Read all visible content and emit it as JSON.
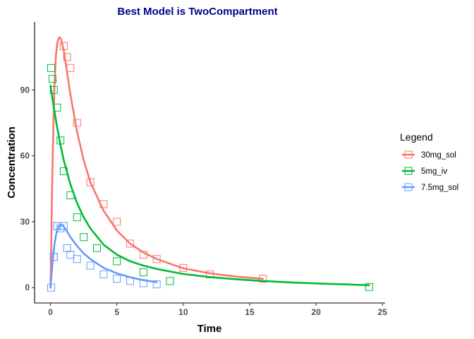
{
  "chart_data": {
    "type": "scatter",
    "title": "Best Model is TwoCompartment",
    "title_color": "#00008b",
    "xlabel": "Time",
    "ylabel": "Concentration",
    "xlim": [
      -1.2,
      25.2
    ],
    "ylim": [
      -7,
      121
    ],
    "x_ticks": [
      0,
      5,
      10,
      15,
      20,
      25
    ],
    "y_ticks": [
      0,
      30,
      60,
      90
    ],
    "grid": false,
    "legend": {
      "title": "Legend",
      "placement": "right"
    },
    "series": [
      {
        "name": "30mg_sol",
        "color": "#f8766d",
        "points": {
          "x": [
            0.25,
            0.5,
            1,
            1.25,
            1.5,
            2,
            3,
            4,
            5,
            6,
            7,
            8,
            10,
            12,
            16
          ],
          "y": [
            14,
            28,
            110,
            105,
            100,
            75,
            48,
            38,
            30,
            20,
            15,
            13,
            9,
            6,
            4
          ]
        },
        "fit": {
          "x": [
            0,
            0.05,
            0.1,
            0.2,
            0.3,
            0.4,
            0.5,
            0.6,
            0.7,
            0.8,
            1,
            1.25,
            1.5,
            2,
            2.5,
            3,
            4,
            5,
            6,
            7,
            8,
            10,
            12,
            14,
            16
          ],
          "y": [
            0,
            15,
            40,
            70,
            92,
            105,
            111,
            113.5,
            114,
            113,
            108,
            98,
            88,
            71,
            58,
            48,
            35,
            26,
            20,
            16,
            13,
            8.8,
            6.5,
            5,
            4
          ]
        }
      },
      {
        "name": "5mg_iv",
        "color": "#00ba38",
        "points": {
          "x": [
            0.05,
            0.15,
            0.25,
            0.5,
            0.75,
            1,
            1.5,
            2,
            2.5,
            3.5,
            5,
            7,
            9,
            24
          ],
          "y": [
            100,
            95,
            90,
            82,
            67,
            53,
            42,
            32,
            23,
            18,
            12,
            7,
            3,
            0.3
          ]
        },
        "fit": {
          "x": [
            0,
            0.25,
            0.5,
            0.75,
            1,
            1.5,
            2,
            2.5,
            3,
            4,
            5,
            6,
            7,
            8,
            10,
            12,
            14,
            16,
            18,
            20,
            22,
            24
          ],
          "y": [
            92,
            82,
            73,
            65,
            58,
            47,
            38.5,
            32,
            27,
            19.5,
            15,
            12,
            10,
            8.5,
            6.2,
            4.8,
            3.8,
            3,
            2.4,
            1.9,
            1.5,
            1.1
          ]
        }
      },
      {
        "name": "7.5mg_sol",
        "color": "#619cff",
        "points": {
          "x": [
            0.05,
            0.25,
            0.5,
            0.75,
            1,
            1.25,
            1.5,
            2,
            3,
            4,
            5,
            6,
            7,
            8
          ],
          "y": [
            0,
            14,
            28,
            27,
            28,
            18,
            15,
            13,
            10,
            6,
            4,
            3,
            2,
            1.5
          ]
        },
        "fit": {
          "x": [
            0,
            0.1,
            0.2,
            0.3,
            0.4,
            0.5,
            0.6,
            0.7,
            0.8,
            0.9,
            1,
            1.25,
            1.5,
            2,
            2.5,
            3,
            4,
            5,
            6,
            7,
            8
          ],
          "y": [
            0,
            8,
            14.5,
            19.5,
            23.5,
            26,
            27.5,
            28.3,
            28.6,
            28.4,
            27.8,
            25.5,
            23,
            19,
            15.5,
            13,
            9,
            6.5,
            4.7,
            3.4,
            2.5
          ]
        }
      }
    ]
  }
}
